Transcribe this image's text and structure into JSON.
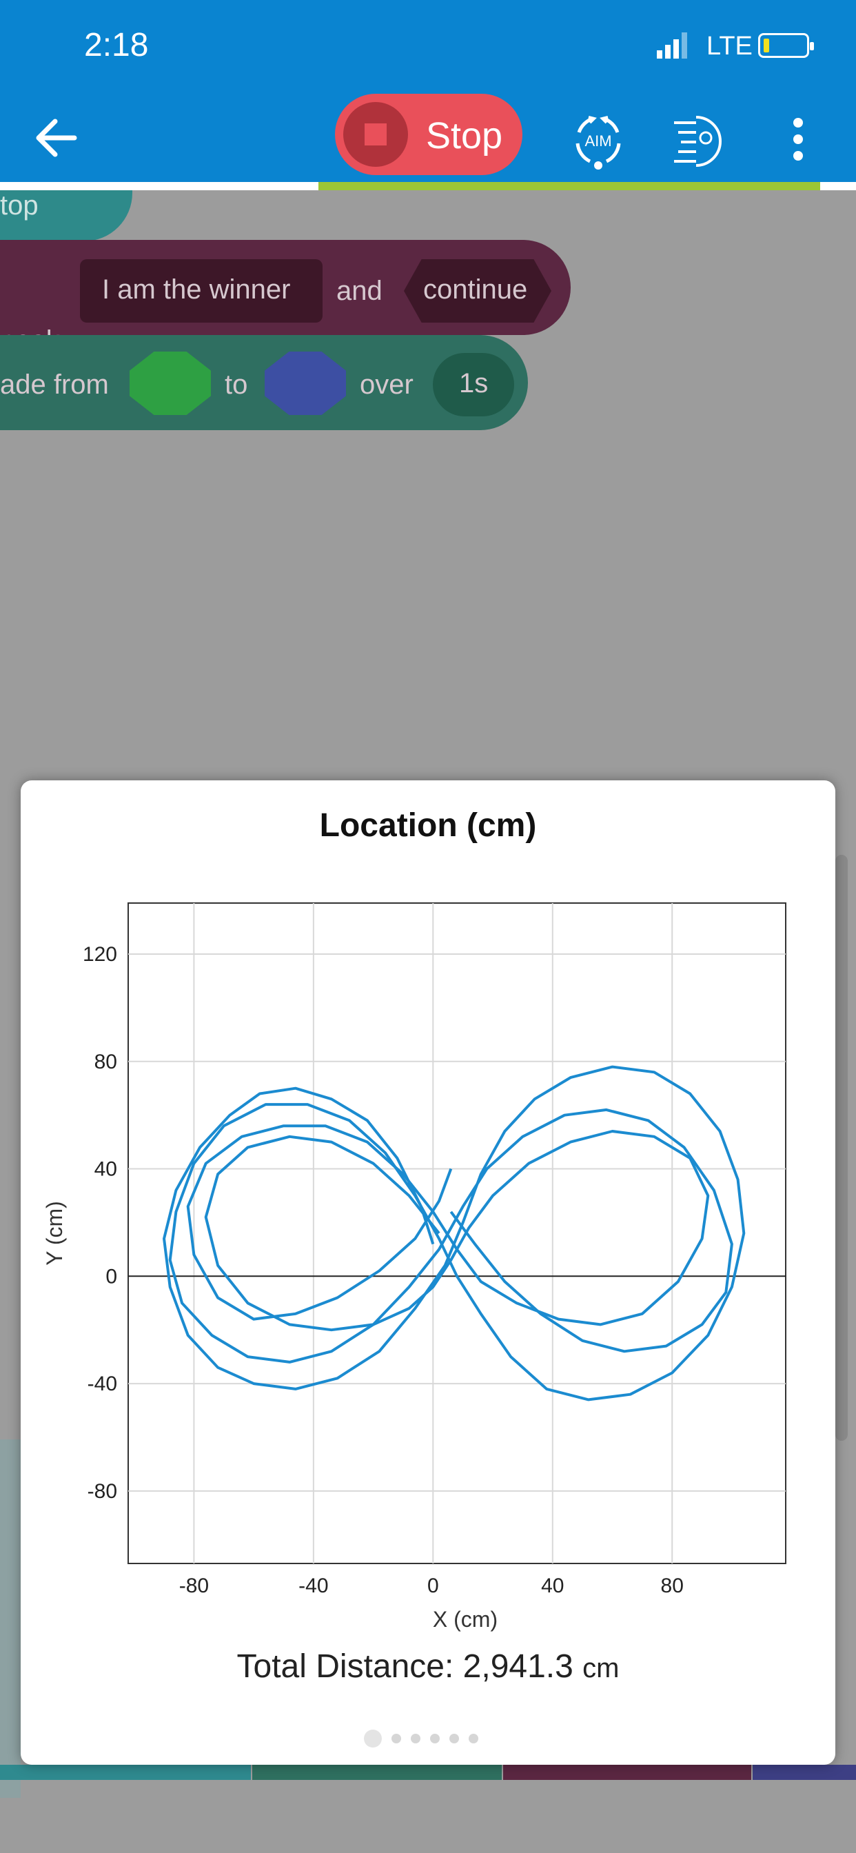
{
  "status_bar": {
    "time": "2:18",
    "network": "LTE"
  },
  "toolbar": {
    "stop_label": "Stop",
    "aim_label": "AIM",
    "stream_progress": 0.74
  },
  "blocks": {
    "stop_label": "top",
    "speak_label": "peak",
    "speak_text": "I am the winner",
    "speak_and": "and",
    "speak_mode": "continue",
    "fade_label": "ade from",
    "fade_to": "to",
    "fade_over": "over",
    "fade_duration": "1s",
    "fade_from_color": "#2ea043",
    "fade_to_color": "#3d4fa3"
  },
  "modal": {
    "title": "Location (cm)",
    "total_label": "Total Distance: 2,941.3",
    "total_unit": "cm",
    "page_count": 6,
    "active_page": 0
  },
  "chart_data": {
    "type": "line",
    "title": "Location (cm)",
    "xlabel": "X (cm)",
    "ylabel": "Y (cm)",
    "xlim": [
      -102,
      118
    ],
    "ylim": [
      -107,
      139
    ],
    "xticks": [
      -80,
      -40,
      0,
      40,
      80
    ],
    "yticks": [
      120,
      80,
      40,
      0,
      -40,
      -80
    ],
    "grid": true,
    "color": "#1b8bd0",
    "series": [
      {
        "x": [
          0,
          -4,
          -12,
          -22,
          -34,
          -46,
          -58,
          -68,
          -78,
          -86,
          -90,
          -88,
          -82,
          -72,
          -60,
          -46,
          -32,
          -18,
          -6,
          4,
          10,
          16,
          24,
          34,
          46,
          60,
          74,
          86,
          96,
          102,
          104,
          100,
          92,
          80,
          66,
          52,
          38,
          26,
          16,
          8,
          2,
          -6,
          -16,
          -28,
          -42,
          -56,
          -70,
          -80,
          -86,
          -88,
          -84,
          -74,
          -62,
          -48,
          -34,
          -20,
          -8,
          2,
          10,
          18,
          30,
          44,
          58,
          72,
          84,
          94,
          100,
          98,
          90,
          78,
          64,
          50,
          36,
          24,
          14,
          6
        ],
        "y": [
          12,
          26,
          44,
          58,
          66,
          70,
          68,
          60,
          48,
          32,
          14,
          -4,
          -22,
          -34,
          -40,
          -42,
          -38,
          -28,
          -12,
          4,
          20,
          38,
          54,
          66,
          74,
          78,
          76,
          68,
          54,
          36,
          16,
          -4,
          -22,
          -36,
          -44,
          -46,
          -42,
          -30,
          -14,
          0,
          14,
          30,
          46,
          58,
          64,
          64,
          56,
          42,
          24,
          6,
          -10,
          -22,
          -30,
          -32,
          -28,
          -18,
          -4,
          10,
          26,
          40,
          52,
          60,
          62,
          58,
          48,
          32,
          12,
          -6,
          -18,
          -26,
          -28,
          -24,
          -14,
          -2,
          12,
          24
        ]
      },
      {
        "x": [
          6,
          2,
          -6,
          -18,
          -32,
          -46,
          -60,
          -72,
          -80,
          -82,
          -76,
          -64,
          -50,
          -36,
          -22,
          -10,
          0,
          8,
          16,
          28,
          42,
          56,
          70,
          82,
          90,
          92,
          86,
          74,
          60,
          46,
          32,
          20,
          12,
          6,
          0,
          -8,
          -20,
          -34,
          -48,
          -62,
          -72,
          -76,
          -72,
          -62,
          -48,
          -34,
          -20,
          -8,
          2
        ],
        "y": [
          40,
          28,
          14,
          2,
          -8,
          -14,
          -16,
          -8,
          8,
          26,
          42,
          52,
          56,
          56,
          50,
          38,
          24,
          10,
          -2,
          -10,
          -16,
          -18,
          -14,
          -2,
          14,
          30,
          44,
          52,
          54,
          50,
          42,
          30,
          18,
          6,
          -4,
          -12,
          -18,
          -20,
          -18,
          -10,
          4,
          22,
          38,
          48,
          52,
          50,
          42,
          30,
          16
        ]
      }
    ]
  }
}
